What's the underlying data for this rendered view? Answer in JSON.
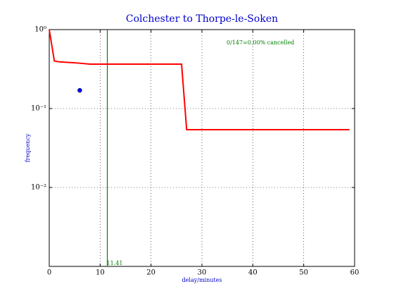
{
  "chart_data": {
    "type": "line",
    "title": "Colchester to Thorpe-le-Soken",
    "xlabel": "delay/minutes",
    "ylabel": "frequency",
    "annotation": "0/147=0.00% cancelled",
    "xlim": [
      0,
      60
    ],
    "xticks": [
      0,
      10,
      20,
      30,
      40,
      50,
      60
    ],
    "ylim": [
      0.001,
      1
    ],
    "yscale": "log",
    "yticks": [
      {
        "value": 1,
        "label": "10⁰"
      },
      {
        "value": 0.1,
        "label": "10⁻¹"
      },
      {
        "value": 0.01,
        "label": "10⁻²"
      }
    ],
    "grid": true,
    "series": [
      {
        "type": "line",
        "color": "#ff0000",
        "x": [
          0,
          1,
          2,
          5,
          8,
          26,
          27,
          59
        ],
        "values": [
          1.0,
          0.4,
          0.39,
          0.38,
          0.365,
          0.365,
          0.054,
          0.054
        ]
      },
      {
        "type": "scatter",
        "color": "#0000ff",
        "x": [
          6
        ],
        "values": [
          0.17
        ]
      }
    ],
    "vline": {
      "x": 11.41,
      "color": "#008000"
    }
  }
}
